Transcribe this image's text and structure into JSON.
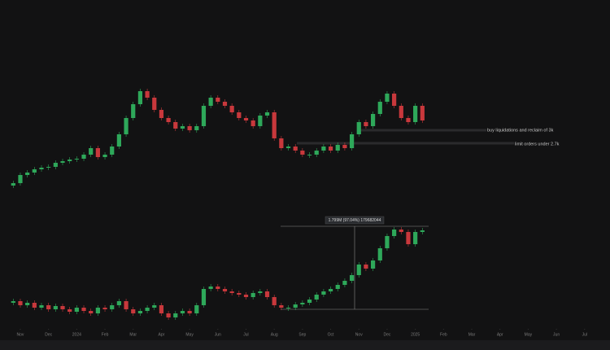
{
  "chart_data": {
    "type": "candlestick",
    "xlim": [
      -0.72,
      20.9
    ],
    "xticks": [
      {
        "value": 0,
        "label": "Nov"
      },
      {
        "value": 1,
        "label": "Dec"
      },
      {
        "value": 2,
        "label": "2024"
      },
      {
        "value": 3,
        "label": "Feb"
      },
      {
        "value": 4,
        "label": "Mar"
      },
      {
        "value": 5,
        "label": "Apr"
      },
      {
        "value": 6,
        "label": "May"
      },
      {
        "value": 7,
        "label": "Jun"
      },
      {
        "value": 8,
        "label": "Jul"
      },
      {
        "value": 9,
        "label": "Aug"
      },
      {
        "value": 10,
        "label": "Sep"
      },
      {
        "value": 11,
        "label": "Oct"
      },
      {
        "value": 12,
        "label": "Nov"
      },
      {
        "value": 13,
        "label": "Dec"
      },
      {
        "value": 14,
        "label": "2025"
      },
      {
        "value": 15,
        "label": "Feb"
      },
      {
        "value": 16,
        "label": "Mar"
      },
      {
        "value": 17,
        "label": "Apr"
      },
      {
        "value": 18,
        "label": "May"
      },
      {
        "value": 19,
        "label": "Jun"
      },
      {
        "value": 20,
        "label": "Jul"
      }
    ],
    "up_color": "#2ea85a",
    "down_color": "#c8383c",
    "panels": [
      {
        "ylim": [
          0,
          240
        ],
        "x": [
          -0.5,
          -0.25,
          0,
          0.25,
          0.5,
          0.75,
          1,
          1.25,
          1.5,
          1.75,
          2,
          2.25,
          2.5,
          2.75,
          3,
          3.25,
          3.5,
          3.75,
          4,
          4.25,
          4.5,
          4.75,
          5,
          5.25,
          5.5,
          5.75,
          6,
          6.25,
          6.5,
          6.75,
          7,
          7.25,
          7.5,
          7.75,
          8,
          8.25,
          8.5,
          8.75,
          9,
          9.25,
          9.5,
          9.75,
          10,
          10.25,
          10.5,
          10.75,
          11,
          11.25,
          11.5,
          11.75,
          12,
          12.25,
          12.5,
          12.75,
          13,
          13.25,
          13.5,
          13.75,
          14,
          14.25
        ],
        "values": [
          12,
          15,
          25,
          28,
          32,
          34,
          35,
          40,
          42,
          44,
          45,
          50,
          58,
          47,
          50,
          60,
          75,
          95,
          112,
          128,
          120,
          105,
          95,
          90,
          82,
          85,
          80,
          85,
          110,
          120,
          115,
          110,
          102,
          95,
          92,
          85,
          98,
          102,
          70,
          58,
          60,
          55,
          50,
          50,
          55,
          60,
          55,
          62,
          58,
          75,
          90,
          85,
          100,
          115,
          125,
          110,
          95,
          90,
          110,
          92
        ],
        "annotations": [
          "buy liquidations and reclaim of 3k",
          "limit orders under 2.7k"
        ]
      },
      {
        "ylim": [
          0,
          150
        ],
        "x": [
          -0.5,
          -0.25,
          0,
          0.25,
          0.5,
          0.75,
          1,
          1.25,
          1.5,
          1.75,
          2,
          2.25,
          2.5,
          2.75,
          3,
          3.25,
          3.5,
          3.75,
          4,
          4.25,
          4.5,
          4.75,
          5,
          5.25,
          5.5,
          5.75,
          6,
          6.25,
          6.5,
          6.75,
          7,
          7.25,
          7.5,
          7.75,
          8,
          8.25,
          8.5,
          8.75,
          9,
          9.25,
          9.5,
          9.75,
          10,
          10.25,
          10.5,
          10.75,
          11,
          11.25,
          11.5,
          11.75,
          12,
          12.25,
          12.5,
          12.75,
          13,
          13.25,
          13.5,
          13.75,
          14,
          14.25
        ],
        "values": [
          28,
          30,
          25,
          28,
          22,
          25,
          20,
          24,
          20,
          17,
          22,
          18,
          15,
          22,
          20,
          25,
          30,
          20,
          15,
          18,
          22,
          25,
          15,
          10,
          15,
          18,
          15,
          25,
          45,
          48,
          45,
          42,
          40,
          38,
          35,
          40,
          42,
          35,
          25,
          22,
          22,
          26,
          28,
          32,
          38,
          42,
          45,
          50,
          55,
          62,
          75,
          70,
          80,
          95,
          110,
          118,
          115,
          100,
          115,
          117
        ],
        "measure_label": "1.799M (97.04%) 179682044"
      }
    ]
  }
}
